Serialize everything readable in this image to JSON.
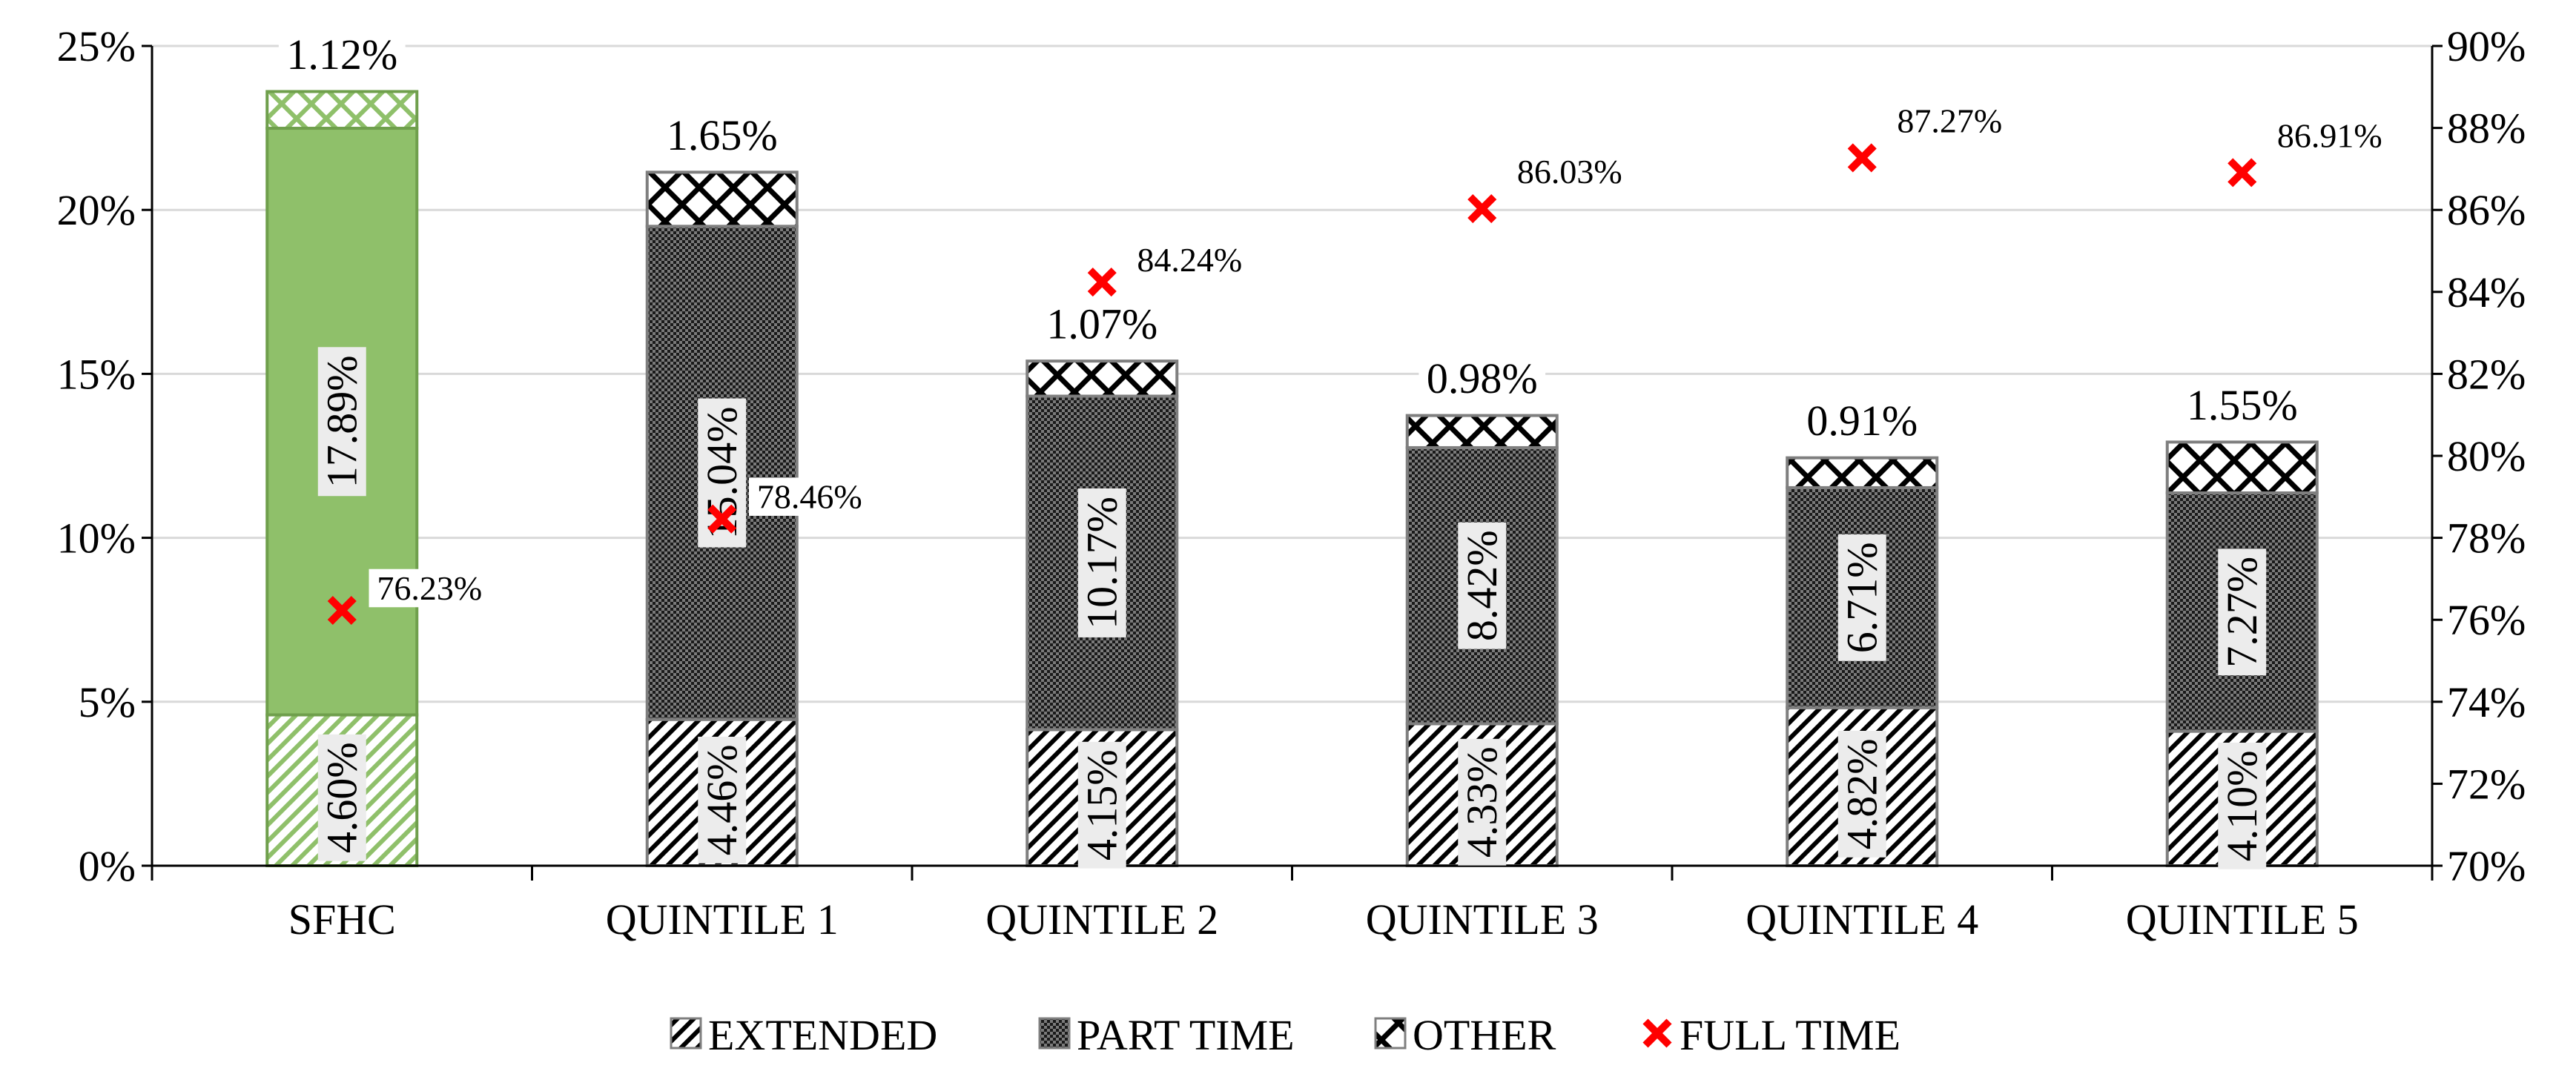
{
  "chart_data": {
    "type": "bar",
    "stacked": true,
    "categories": [
      "SFHC",
      "QUINTILE 1",
      "QUINTILE 2",
      "QUINTILE 3",
      "QUINTILE 4",
      "QUINTILE 5"
    ],
    "series": [
      {
        "name": "EXTENDED",
        "axis": "left",
        "values": [
          4.6,
          4.46,
          4.15,
          4.33,
          4.82,
          4.1
        ],
        "labels": [
          "4.60%",
          "4.46%",
          "4.15%",
          "4.33%",
          "4.82%",
          "4.10%"
        ]
      },
      {
        "name": "PART TIME",
        "axis": "left",
        "values": [
          17.89,
          15.04,
          10.17,
          8.42,
          6.71,
          7.27
        ],
        "labels": [
          "17.89%",
          "15.04%",
          "10.17%",
          "8.42%",
          "6.71%",
          "7.27%"
        ]
      },
      {
        "name": "OTHER",
        "axis": "left",
        "values": [
          1.12,
          1.65,
          1.07,
          0.98,
          0.91,
          1.55
        ],
        "labels": [
          "1.12%",
          "1.65%",
          "1.07%",
          "0.98%",
          "0.91%",
          "1.55%"
        ]
      },
      {
        "name": "FULL TIME",
        "type": "scatter",
        "axis": "right",
        "values": [
          76.23,
          78.46,
          84.24,
          86.03,
          87.27,
          86.91
        ],
        "labels": [
          "76.23%",
          "78.46%",
          "84.24%",
          "86.03%",
          "87.27%",
          "86.91%"
        ]
      }
    ],
    "y_left": {
      "ylim": [
        0,
        25
      ],
      "ticks": [
        0,
        5,
        10,
        15,
        20,
        25
      ],
      "tick_labels": [
        "0%",
        "5%",
        "10%",
        "15%",
        "20%",
        "25%"
      ]
    },
    "y_right": {
      "ylim": [
        70,
        90
      ],
      "ticks": [
        70,
        72,
        74,
        76,
        78,
        80,
        82,
        84,
        86,
        88,
        90
      ],
      "tick_labels": [
        "70%",
        "72%",
        "74%",
        "76%",
        "78%",
        "80%",
        "82%",
        "84%",
        "86%",
        "88%",
        "90%"
      ]
    },
    "grid": true,
    "legend": {
      "position": "bottom",
      "entries": [
        "EXTENDED",
        "PART TIME",
        "OTHER",
        "FULL TIME"
      ]
    },
    "colors": {
      "sfhc_fill": "#8fc06a",
      "sfhc_stroke": "#6f9f4c",
      "quintile_fill": "#3a3a3a",
      "marker": "#ff0000",
      "axis": "#000000",
      "grid": "#d9d9d9",
      "label_box": "#ececec"
    }
  }
}
